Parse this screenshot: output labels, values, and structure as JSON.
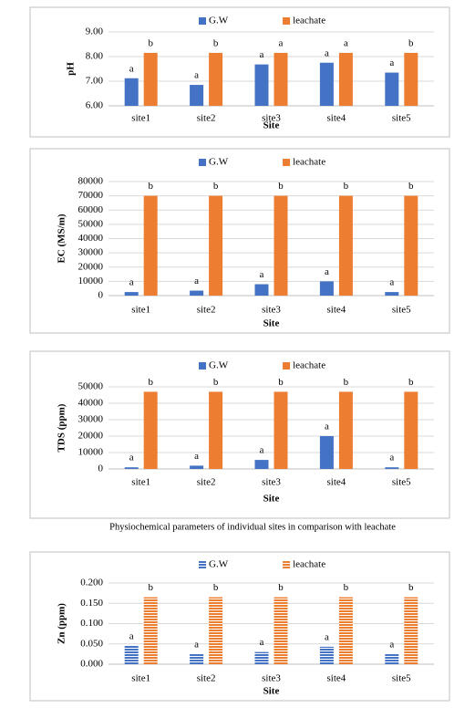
{
  "caption": "Physiochemical parameters of individual sites in comparison with leachate",
  "chart_data": [
    {
      "type": "bar",
      "y_label": "pH",
      "x_label": "Site",
      "grid": true,
      "categories": [
        "site1",
        "site2",
        "site3",
        "site4",
        "site5"
      ],
      "series": [
        {
          "name": "G.W",
          "color": "#4472c4",
          "values": [
            7.12,
            6.85,
            7.68,
            7.75,
            7.35
          ],
          "value_labels": [
            "a",
            "a",
            "a",
            "a",
            "a"
          ]
        },
        {
          "name": "leachate",
          "color": "#ed7d31",
          "values": [
            8.15,
            8.15,
            8.15,
            8.15,
            8.15
          ],
          "value_labels": [
            "b",
            "b",
            "a",
            "a",
            "b"
          ]
        }
      ],
      "ylim": [
        6,
        9
      ],
      "yticks": [
        {
          "value": 6,
          "label": "6.00"
        },
        {
          "value": 7,
          "label": "7.00"
        },
        {
          "value": 8,
          "label": "8.00"
        },
        {
          "value": 9,
          "label": "9.00"
        }
      ]
    },
    {
      "type": "bar",
      "y_label": "EC (MS/m)",
      "x_label": "Site",
      "grid": true,
      "categories": [
        "site1",
        "site2",
        "site3",
        "site4",
        "site5"
      ],
      "series": [
        {
          "name": "G.W",
          "color": "#4472c4",
          "values": [
            2500,
            3500,
            8000,
            10000,
            2500
          ],
          "value_labels": [
            "a",
            "a",
            "a",
            "a",
            "a"
          ]
        },
        {
          "name": "leachate",
          "color": "#ed7d31",
          "values": [
            70000,
            70000,
            70000,
            70000,
            70000
          ],
          "value_labels": [
            "b",
            "b",
            "b",
            "b",
            "b"
          ]
        }
      ],
      "ylim": [
        0,
        80000
      ],
      "yticks": [
        0,
        10000,
        20000,
        30000,
        40000,
        50000,
        60000,
        70000,
        80000
      ]
    },
    {
      "type": "bar",
      "y_label": "TDS (ppm)",
      "x_label": "Site",
      "grid": true,
      "categories": [
        "site1",
        "site2",
        "site3",
        "site4",
        "site5"
      ],
      "series": [
        {
          "name": "G.W",
          "color": "#4472c4",
          "values": [
            1000,
            2000,
            5500,
            20000,
            1000
          ],
          "value_labels": [
            "a",
            "a",
            "a",
            "a",
            "a"
          ]
        },
        {
          "name": "leachate",
          "color": "#ed7d31",
          "values": [
            47000,
            47000,
            47000,
            47000,
            47000
          ],
          "value_labels": [
            "b",
            "b",
            "b",
            "b",
            "b"
          ]
        }
      ],
      "ylim": [
        0,
        50000
      ],
      "yticks": [
        0,
        10000,
        20000,
        30000,
        40000,
        50000
      ]
    },
    {
      "type": "bar",
      "y_label": "Zn (ppm)",
      "x_label": "Site",
      "grid": true,
      "pattern": "stripes",
      "categories": [
        "site1",
        "site2",
        "site3",
        "site4",
        "site5"
      ],
      "series": [
        {
          "name": "G.W",
          "color": "#4472c4",
          "values": [
            0.045,
            0.025,
            0.03,
            0.043,
            0.025
          ],
          "value_labels": [
            "a",
            "a",
            "a",
            "a",
            "a"
          ]
        },
        {
          "name": "leachate",
          "color": "#ed7d31",
          "values": [
            0.165,
            0.165,
            0.165,
            0.165,
            0.165
          ],
          "value_labels": [
            "b",
            "b",
            "b",
            "b",
            "b"
          ]
        }
      ],
      "ylim": [
        0,
        0.2
      ],
      "yticks": [
        {
          "value": 0,
          "label": "0.000"
        },
        {
          "value": 0.05,
          "label": "0.050"
        },
        {
          "value": 0.1,
          "label": "0.100"
        },
        {
          "value": 0.15,
          "label": "0.150"
        },
        {
          "value": 0.2,
          "label": "0.200"
        }
      ]
    }
  ]
}
